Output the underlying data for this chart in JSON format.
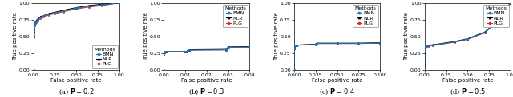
{
  "panels": [
    {
      "label_text": "(a) ",
      "label_math": "\\mathbf{P}",
      "label_val": " = 0.2",
      "xlim": [
        0.0,
        1.0
      ],
      "ylim": [
        0.0,
        1.0
      ],
      "xticks": [
        0.0,
        0.25,
        0.5,
        0.75,
        1.0
      ],
      "xtick_labels": [
        "0.00",
        "0.25",
        "0.50",
        "0.75",
        "1.00"
      ],
      "yticks": [
        0.0,
        0.25,
        0.5,
        0.75,
        1.0
      ],
      "ytick_labels": [
        "0.00",
        "0.25",
        "0.50",
        "0.75",
        "1.00"
      ],
      "xlabel": "False positive rate",
      "ylabel": "True positive rate",
      "legend_loc": "lower right",
      "curves": {
        "BMN": {
          "x": [
            0.0,
            0.0005,
            0.001,
            0.0015,
            0.002,
            0.003,
            0.004,
            0.005,
            0.006,
            0.007,
            0.008,
            0.009,
            0.01,
            0.012,
            0.015,
            0.02,
            0.03,
            0.05,
            0.08,
            0.12,
            0.18,
            0.25,
            0.35,
            0.5,
            0.65,
            0.8,
            1.0
          ],
          "y": [
            0.0,
            0.5,
            0.55,
            0.58,
            0.6,
            0.63,
            0.64,
            0.65,
            0.65,
            0.66,
            0.67,
            0.67,
            0.68,
            0.69,
            0.69,
            0.7,
            0.72,
            0.75,
            0.78,
            0.8,
            0.83,
            0.85,
            0.88,
            0.92,
            0.95,
            0.97,
            1.0
          ],
          "color": "#1f77b4",
          "marker": "o"
        },
        "NLR": {
          "x": [
            0.0,
            0.0005,
            0.001,
            0.0015,
            0.002,
            0.003,
            0.004,
            0.005,
            0.006,
            0.007,
            0.008,
            0.009,
            0.01,
            0.012,
            0.015,
            0.02,
            0.03,
            0.05,
            0.08,
            0.12,
            0.18,
            0.25,
            0.35,
            0.5,
            0.65,
            0.8,
            1.0
          ],
          "y": [
            0.0,
            0.52,
            0.57,
            0.6,
            0.62,
            0.64,
            0.65,
            0.66,
            0.66,
            0.67,
            0.67,
            0.68,
            0.68,
            0.69,
            0.7,
            0.71,
            0.73,
            0.76,
            0.79,
            0.81,
            0.84,
            0.86,
            0.89,
            0.93,
            0.96,
            0.98,
            1.0
          ],
          "color": "#000000",
          "marker": "^"
        },
        "PLG": {
          "x": [
            0.0,
            0.0005,
            0.001,
            0.0015,
            0.002,
            0.003,
            0.004,
            0.005,
            0.006,
            0.007,
            0.008,
            0.009,
            0.01,
            0.012,
            0.015,
            0.02,
            0.03,
            0.05,
            0.08,
            0.12,
            0.18,
            0.25,
            0.35,
            0.5,
            0.65,
            0.8,
            1.0
          ],
          "y": [
            0.0,
            0.49,
            0.54,
            0.57,
            0.59,
            0.62,
            0.63,
            0.64,
            0.64,
            0.65,
            0.66,
            0.66,
            0.67,
            0.68,
            0.68,
            0.69,
            0.71,
            0.74,
            0.77,
            0.79,
            0.82,
            0.84,
            0.87,
            0.91,
            0.94,
            0.96,
            1.0
          ],
          "color": "#d62728",
          "marker": "o"
        }
      }
    },
    {
      "label_text": "(b) ",
      "label_math": "\\mathbf{P}",
      "label_val": " = 0.3",
      "xlim": [
        0.0,
        0.04
      ],
      "ylim": [
        0.0,
        1.0
      ],
      "xticks": [
        0.0,
        0.01,
        0.02,
        0.03,
        0.04
      ],
      "xtick_labels": [
        "0.00",
        "0.01",
        "0.02",
        "0.03",
        "0.04"
      ],
      "yticks": [
        0.0,
        0.25,
        0.5,
        0.75,
        1.0
      ],
      "ytick_labels": [
        "0.00",
        "0.25",
        "0.50",
        "0.75",
        "1.00"
      ],
      "xlabel": "False positive rate",
      "ylabel": "True positive rate",
      "legend_loc": "upper right",
      "curves": {
        "BMN": {
          "x": [
            0.0,
            5e-05,
            0.0001,
            0.00015,
            0.0002,
            0.0003,
            0.001,
            0.01,
            0.0105,
            0.011,
            0.012,
            0.029,
            0.03,
            0.031,
            0.04
          ],
          "y": [
            0.0,
            0.22,
            0.26,
            0.27,
            0.27,
            0.27,
            0.27,
            0.27,
            0.27,
            0.28,
            0.295,
            0.299,
            0.335,
            0.34,
            0.342
          ],
          "color": "#1f77b4",
          "marker": "o"
        },
        "NLR": {
          "x": [
            0.0,
            5e-05,
            0.0001,
            0.00015,
            0.0002,
            0.0003,
            0.001,
            0.01,
            0.0105,
            0.011,
            0.012,
            0.029,
            0.03,
            0.031,
            0.04
          ],
          "y": [
            0.0,
            0.22,
            0.26,
            0.27,
            0.27,
            0.27,
            0.27,
            0.27,
            0.27,
            0.285,
            0.3,
            0.305,
            0.34,
            0.345,
            0.347
          ],
          "color": "#000000",
          "marker": "^"
        },
        "PLG": {
          "x": [
            0.0,
            5e-05,
            0.0001,
            0.00015,
            0.0002,
            0.0003,
            0.001,
            0.01,
            0.0105,
            0.011,
            0.012,
            0.029,
            0.03,
            0.031,
            0.04
          ],
          "y": [
            0.0,
            0.22,
            0.26,
            0.27,
            0.27,
            0.27,
            0.27,
            0.27,
            0.27,
            0.28,
            0.295,
            0.299,
            0.335,
            0.34,
            0.342
          ],
          "color": "#d62728",
          "marker": "o"
        }
      }
    },
    {
      "label_text": "(c) ",
      "label_math": "\\mathbf{P}",
      "label_val": " = 0.4",
      "xlim": [
        0.0,
        0.1
      ],
      "ylim": [
        0.0,
        1.0
      ],
      "xticks": [
        0.0,
        0.025,
        0.05,
        0.075,
        0.1
      ],
      "xtick_labels": [
        "0.000",
        "0.025",
        "0.050",
        "0.075",
        "0.100"
      ],
      "yticks": [
        0.0,
        0.25,
        0.5,
        0.75,
        1.0
      ],
      "ytick_labels": [
        "0.00",
        "0.25",
        "0.50",
        "0.75",
        "1.00"
      ],
      "xlabel": "False positive rate",
      "ylabel": "True positive rate",
      "legend_loc": "upper right",
      "curves": {
        "BMN": {
          "x": [
            0.0,
            0.0001,
            0.0002,
            0.0003,
            0.0005,
            0.001,
            0.003,
            0.025,
            0.026,
            0.05,
            0.075,
            0.1
          ],
          "y": [
            0.0,
            0.32,
            0.35,
            0.36,
            0.37,
            0.37,
            0.37,
            0.38,
            0.395,
            0.395,
            0.395,
            0.4
          ],
          "color": "#1f77b4",
          "marker": "o"
        },
        "NLR": {
          "x": [
            0.0,
            0.0001,
            0.0002,
            0.0003,
            0.0005,
            0.001,
            0.003,
            0.025,
            0.026,
            0.05,
            0.075,
            0.1
          ],
          "y": [
            0.0,
            0.32,
            0.35,
            0.36,
            0.37,
            0.37,
            0.37,
            0.385,
            0.4,
            0.4,
            0.4,
            0.405
          ],
          "color": "#000000",
          "marker": "^"
        },
        "PLG": {
          "x": [
            0.0,
            0.0001,
            0.0002,
            0.0003,
            0.0005,
            0.001,
            0.003,
            0.025,
            0.026,
            0.05,
            0.075,
            0.1
          ],
          "y": [
            0.0,
            0.32,
            0.35,
            0.36,
            0.37,
            0.37,
            0.37,
            0.38,
            0.395,
            0.395,
            0.395,
            0.4
          ],
          "color": "#d62728",
          "marker": "o"
        }
      }
    },
    {
      "label_text": "(d) ",
      "label_math": "\\mathbf{P}",
      "label_val": " = 0.5",
      "xlim": [
        0.0,
        1.0
      ],
      "ylim": [
        0.0,
        1.0
      ],
      "xticks": [
        0.0,
        0.25,
        0.5,
        0.75,
        1.0
      ],
      "xtick_labels": [
        "0.00",
        "0.25",
        "0.50",
        "0.75",
        "1.00"
      ],
      "yticks": [
        0.0,
        0.25,
        0.5,
        0.75,
        1.0
      ],
      "ytick_labels": [
        "0.00",
        "0.25",
        "0.50",
        "0.75",
        "1.00"
      ],
      "xlabel": "False positive rate",
      "ylabel": "True positive rate",
      "legend_loc": "upper right",
      "curves": {
        "BMN": {
          "x": [
            0.0,
            0.0001,
            0.0003,
            0.001,
            0.005,
            0.025,
            0.05,
            0.1,
            0.2,
            0.35,
            0.5,
            0.7,
            0.85,
            1.0
          ],
          "y": [
            0.0,
            0.3,
            0.34,
            0.35,
            0.355,
            0.36,
            0.365,
            0.37,
            0.39,
            0.42,
            0.46,
            0.56,
            0.72,
            1.0
          ],
          "color": "#1f77b4",
          "marker": "o"
        },
        "NLR": {
          "x": [
            0.0,
            0.0001,
            0.0003,
            0.001,
            0.005,
            0.025,
            0.05,
            0.1,
            0.2,
            0.35,
            0.5,
            0.7,
            0.85,
            1.0
          ],
          "y": [
            0.0,
            0.3,
            0.34,
            0.355,
            0.36,
            0.365,
            0.37,
            0.375,
            0.395,
            0.425,
            0.465,
            0.565,
            0.725,
            1.0
          ],
          "color": "#000000",
          "marker": "^"
        },
        "PLG": {
          "x": [
            0.0,
            0.0001,
            0.0003,
            0.001,
            0.005,
            0.025,
            0.05,
            0.1,
            0.2,
            0.35,
            0.5,
            0.7,
            0.85,
            1.0
          ],
          "y": [
            0.0,
            0.29,
            0.33,
            0.34,
            0.345,
            0.355,
            0.36,
            0.365,
            0.385,
            0.415,
            0.455,
            0.555,
            0.715,
            1.0
          ],
          "color": "#d62728",
          "marker": "o"
        }
      }
    }
  ],
  "legend_methods": [
    "BMN",
    "NLR",
    "PLG"
  ],
  "legend_colors": [
    "#1f77b4",
    "#000000",
    "#d62728"
  ],
  "legend_markers": [
    "o",
    "^",
    "o"
  ],
  "figure_bg": "#ffffff"
}
